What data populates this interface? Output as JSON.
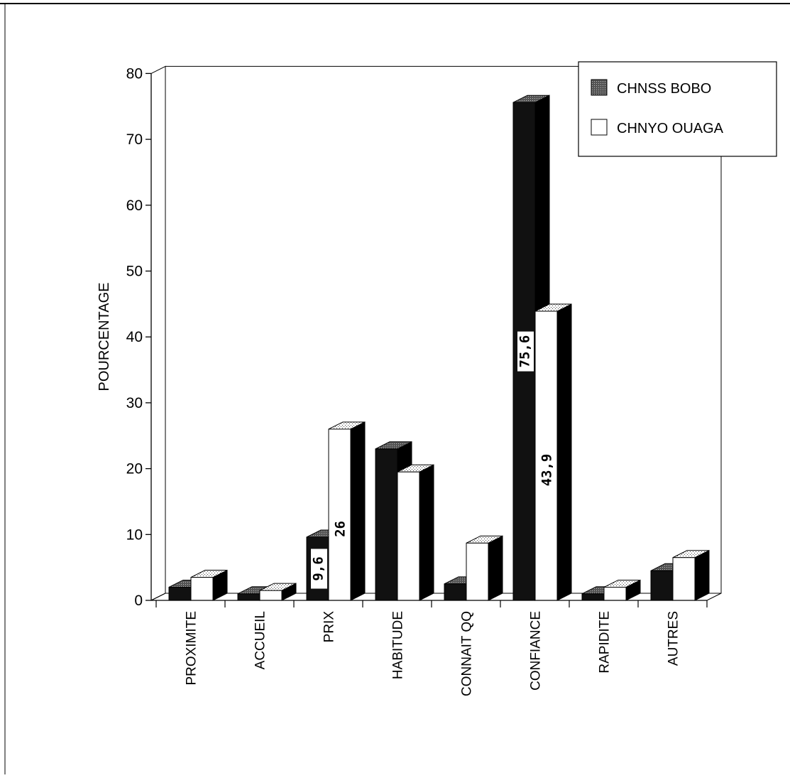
{
  "chart_data": {
    "type": "bar",
    "view": "3d",
    "ylabel": "POURCENTAGE",
    "ylim": [
      0,
      80
    ],
    "yticks": [
      0,
      10,
      20,
      30,
      40,
      50,
      60,
      70,
      80
    ],
    "categories": [
      "PROXIMITE",
      "ACCUEIL",
      "PRIX",
      "HABITUDE",
      "CONNAIT QQ",
      "CONFIANCE",
      "RAPIDITE",
      "AUTRES"
    ],
    "series": [
      {
        "name": "CHNSS BOBO",
        "color": "#111111",
        "values": [
          2,
          1,
          9.6,
          23,
          2.5,
          75.6,
          1,
          4.5
        ],
        "labels": [
          "",
          "",
          "9,6",
          "",
          "",
          "75,6",
          "",
          ""
        ]
      },
      {
        "name": "CHNYO OUAGA",
        "color": "#ffffff",
        "values": [
          3.5,
          1.5,
          26,
          19.5,
          8.7,
          43.9,
          2,
          6.5
        ],
        "labels": [
          "",
          "",
          "26",
          "",
          "",
          "43,9",
          "",
          ""
        ]
      }
    ],
    "legend": {
      "position": "top-right",
      "entries": [
        "CHNSS BOBO",
        "CHNYO OUAGA"
      ]
    },
    "grid": false
  }
}
